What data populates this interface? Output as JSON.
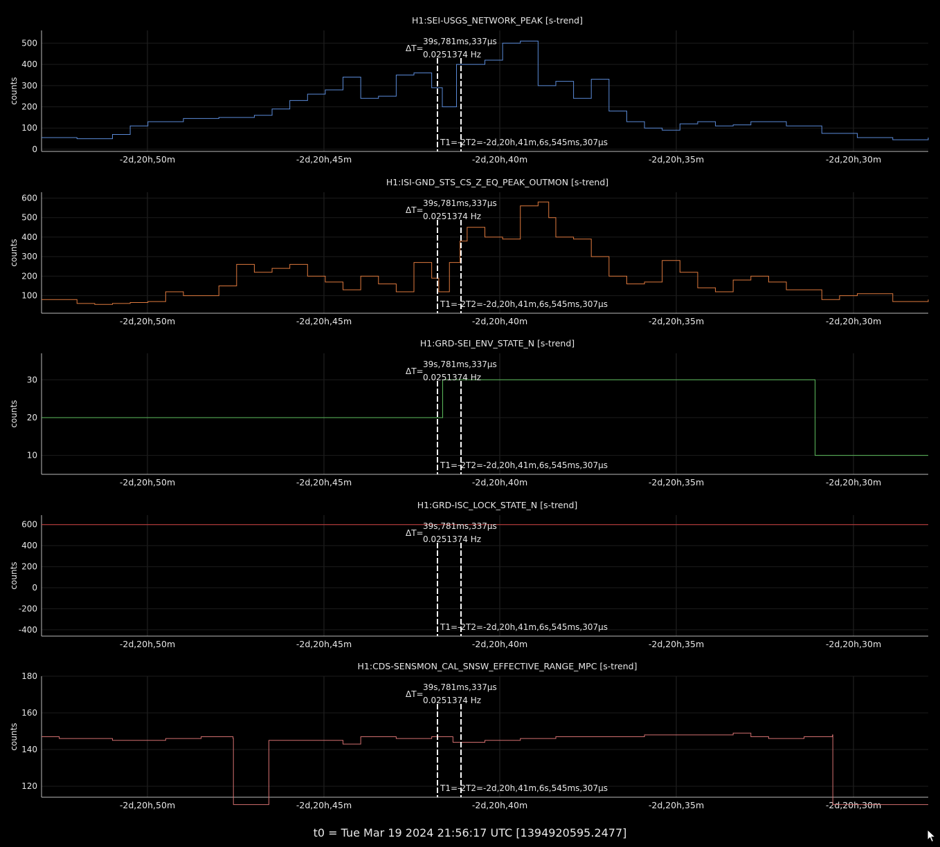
{
  "footer": "t0 = Tue Mar 19 2024 21:56:17 UTC [1394920595.2477]",
  "cursor": {
    "delta_t": "39s,781ms,337µs",
    "frequency": "0.0251374 Hz",
    "t1t2_label": "T1=-2T2=-2d,20h,41m,6s,545ms,307µs",
    "delta_prefix": "ΔT="
  },
  "x_ticks": [
    "-2d,20h,50m",
    "-2d,20h,45m",
    "-2d,20h,40m",
    "-2d,20h,35m",
    "-2d,20h,30m"
  ],
  "chart_data": [
    {
      "type": "line",
      "title": "H1:SEI-USGS_NETWORK_PEAK [s-trend]",
      "ylabel": "counts",
      "color": "#5b8bd9",
      "ylim": [
        -10,
        560
      ],
      "yticks": [
        0,
        100,
        200,
        300,
        400,
        500
      ],
      "x": [
        -53,
        -52,
        -51,
        -50.5,
        -50,
        -49,
        -48,
        -47,
        -46.5,
        -46,
        -45.5,
        -45,
        -44.5,
        -44,
        -43.5,
        -43,
        -42.5,
        -42,
        -41.7,
        -41.3,
        -41,
        -40.5,
        -40,
        -39.5,
        -39,
        -38.5,
        -38,
        -37.5,
        -37,
        -36.5,
        -36,
        -35.5,
        -35,
        -34.5,
        -34,
        -33.5,
        -33,
        -32,
        -31,
        -30,
        -29,
        -28
      ],
      "y": [
        55,
        50,
        70,
        110,
        130,
        145,
        150,
        160,
        190,
        230,
        260,
        280,
        340,
        240,
        250,
        350,
        360,
        290,
        200,
        400,
        400,
        420,
        500,
        510,
        300,
        320,
        240,
        330,
        180,
        130,
        100,
        90,
        120,
        130,
        110,
        115,
        130,
        110,
        75,
        55,
        45,
        55
      ]
    },
    {
      "type": "line",
      "title": "H1:ISI-GND_STS_CS_Z_EQ_PEAK_OUTMON [s-trend]",
      "ylabel": "counts",
      "color": "#e07a3e",
      "ylim": [
        10,
        630
      ],
      "yticks": [
        100,
        200,
        300,
        400,
        500,
        600
      ],
      "x": [
        -53,
        -52,
        -51.5,
        -51,
        -50.5,
        -50,
        -49.5,
        -49,
        -48.5,
        -48,
        -47.5,
        -47,
        -46.5,
        -46,
        -45.5,
        -45,
        -44.5,
        -44,
        -43.5,
        -43,
        -42.5,
        -42,
        -41.8,
        -41.5,
        -41.2,
        -41,
        -40.5,
        -40,
        -39.5,
        -39,
        -38.7,
        -38.5,
        -38,
        -37.5,
        -37,
        -36.5,
        -36,
        -35.5,
        -35,
        -34.5,
        -34,
        -33.5,
        -33,
        -32.5,
        -32,
        -31,
        -30.5,
        -30,
        -29,
        -28
      ],
      "y": [
        80,
        60,
        55,
        60,
        65,
        70,
        120,
        100,
        100,
        150,
        260,
        220,
        240,
        260,
        200,
        170,
        130,
        200,
        160,
        120,
        270,
        190,
        120,
        270,
        380,
        450,
        400,
        390,
        560,
        580,
        500,
        400,
        390,
        300,
        200,
        160,
        170,
        280,
        220,
        140,
        120,
        180,
        200,
        170,
        130,
        80,
        100,
        110,
        70,
        80
      ]
    },
    {
      "type": "line",
      "title": "H1:GRD-SEI_ENV_STATE_N [s-trend]",
      "ylabel": "counts",
      "color": "#5fbf5f",
      "ylim": [
        5,
        37
      ],
      "yticks": [
        10,
        20,
        30
      ],
      "x": [
        -53,
        -41.7,
        -41.69,
        -31.2,
        -31.19,
        -28
      ],
      "y": [
        20,
        20,
        30,
        30,
        10,
        10
      ]
    },
    {
      "type": "line",
      "title": "H1:GRD-ISC_LOCK_STATE_N [s-trend]",
      "ylabel": "counts",
      "color": "#d44040",
      "ylim": [
        -460,
        690
      ],
      "yticks": [
        -400,
        -200,
        0,
        200,
        400,
        600
      ],
      "x": [
        -53,
        -28
      ],
      "y": [
        600,
        600
      ]
    },
    {
      "type": "line",
      "title": "H1:CDS-SENSMON_CAL_SNSW_EFFECTIVE_RANGE_MPC [s-trend]",
      "ylabel": "counts",
      "color": "#d47070",
      "ylim": [
        114,
        180
      ],
      "yticks": [
        120,
        140,
        160,
        180
      ],
      "x": [
        -53,
        -52.5,
        -51,
        -49.5,
        -48.5,
        -47.6,
        -47.59,
        -46.6,
        -46.59,
        -45.5,
        -44.5,
        -44,
        -43,
        -42,
        -41.4,
        -40.5,
        -39.5,
        -38.5,
        -37,
        -36,
        -34.5,
        -33.5,
        -33,
        -32.5,
        -31.5,
        -30.7,
        -30.69,
        -30.4
      ],
      "y": [
        147,
        146,
        145,
        146,
        147,
        146,
        110,
        110,
        145,
        145,
        143,
        147,
        146,
        147,
        144,
        145,
        146,
        147,
        147,
        148,
        148,
        149,
        147,
        146,
        147,
        148,
        110,
        110
      ]
    }
  ]
}
